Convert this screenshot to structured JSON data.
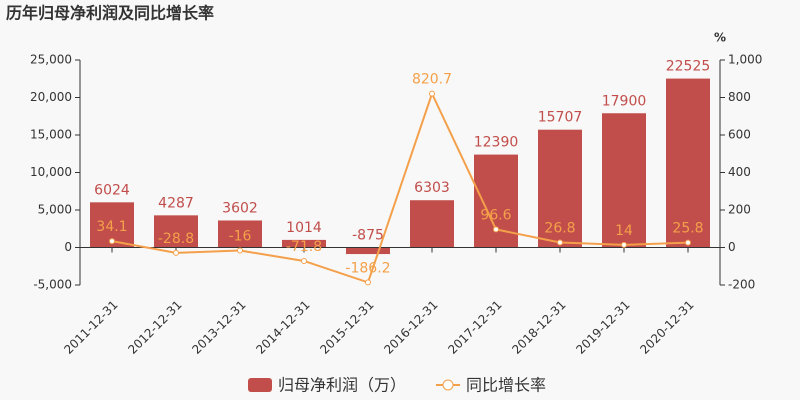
{
  "chart_data": {
    "type": "bar-line",
    "title": "历年归母净利润及同比增长率",
    "y2_label": "%",
    "categories": [
      "2011-12-31",
      "2012-12-31",
      "2013-12-31",
      "2014-12-31",
      "2015-12-31",
      "2016-12-31",
      "2017-12-31",
      "2018-12-31",
      "2019-12-31",
      "2020-12-31"
    ],
    "series": [
      {
        "name": "归母净利润（万）",
        "type": "bar",
        "color": "#c14e4b",
        "values": [
          6024,
          4287,
          3602,
          1014,
          -875,
          6303,
          12390,
          15707,
          17900,
          22525
        ]
      },
      {
        "name": "同比增长率",
        "type": "line",
        "axis": "y2",
        "color": "#f4a04a",
        "values": [
          34.1,
          -28.8,
          -16,
          -71.8,
          -186.2,
          820.7,
          96.6,
          26.8,
          14,
          25.8
        ]
      }
    ],
    "ylim": [
      -5000,
      25000
    ],
    "yticks": [
      {
        "value": -5000,
        "label": "-5,000"
      },
      0,
      {
        "value": 5000,
        "label": "5,000"
      },
      {
        "value": 10000,
        "label": "10,000"
      },
      {
        "value": 15000,
        "label": "15,000"
      },
      {
        "value": 20000,
        "label": "20,000"
      },
      {
        "value": 25000,
        "label": "25,000"
      }
    ],
    "y2lim": [
      -200,
      1000
    ],
    "y2ticks": [
      -200,
      0,
      200,
      400,
      600,
      800,
      {
        "value": 1000,
        "label": "1,000"
      }
    ]
  }
}
